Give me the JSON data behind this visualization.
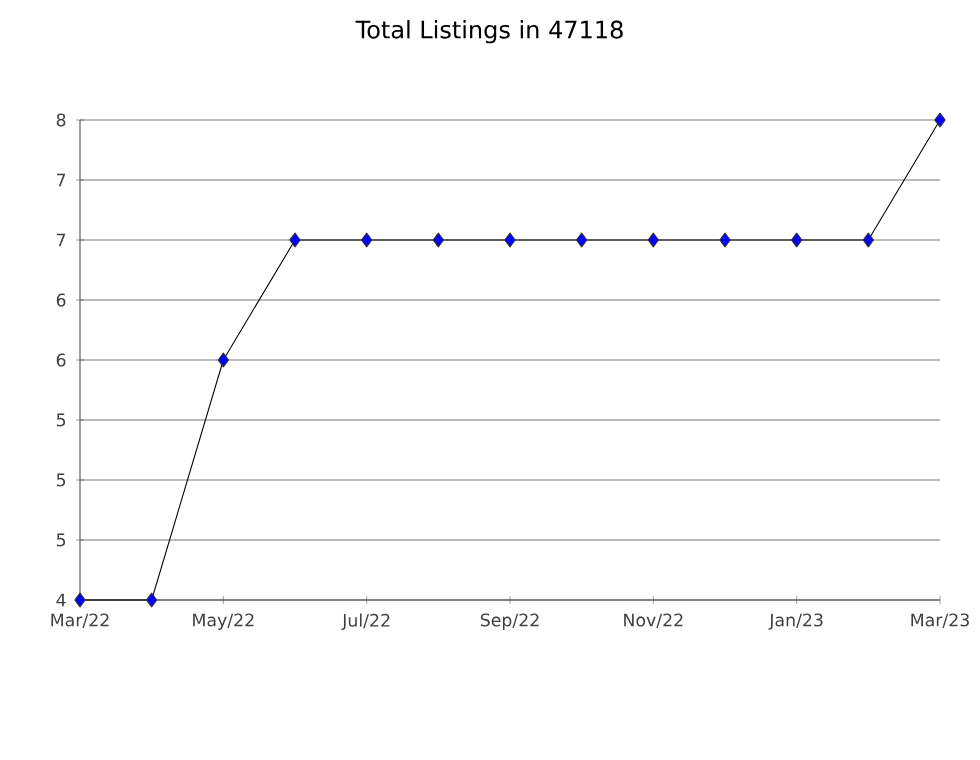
{
  "chart_data": {
    "type": "line",
    "title": "Total Listings in 47118",
    "x": [
      "2022-03",
      "2022-04",
      "2022-05",
      "2022-06",
      "2022-07",
      "2022-08",
      "2022-09",
      "2022-10",
      "2022-11",
      "2022-12",
      "2023-01",
      "2023-02",
      "2023-03"
    ],
    "series": [
      {
        "color": "#0000ff",
        "values": [
          4,
          4,
          6,
          7,
          7,
          7,
          7,
          7,
          7,
          7,
          7,
          7,
          8
        ]
      }
    ],
    "xlim": [
      "2022-03",
      "2023-03"
    ],
    "xticks": [
      {
        "value": "2022-03",
        "label": "Mar/22"
      },
      {
        "value": "2022-05",
        "label": "May/22"
      },
      {
        "value": "2022-07",
        "label": "Jul/22"
      },
      {
        "value": "2022-09",
        "label": "Sep/22"
      },
      {
        "value": "2022-11",
        "label": "Nov/22"
      },
      {
        "value": "2023-01",
        "label": "Jan/23"
      },
      {
        "value": "2023-03",
        "label": "Mar/23"
      }
    ],
    "ylim": [
      4,
      8
    ],
    "yticks": [
      4,
      {
        "value": 4.5,
        "label": "5"
      },
      5,
      {
        "value": 5.5,
        "label": "5"
      },
      6,
      {
        "value": 6.5,
        "label": "6"
      },
      7,
      {
        "value": 7.5,
        "label": "7"
      },
      8
    ],
    "grid": "y",
    "marker": "diamond",
    "line_style": "solid"
  }
}
